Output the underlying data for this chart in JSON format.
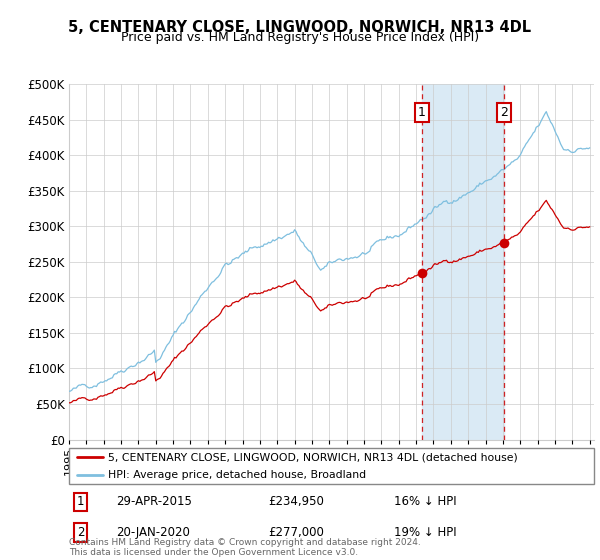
{
  "title": "5, CENTENARY CLOSE, LINGWOOD, NORWICH, NR13 4DL",
  "subtitle": "Price paid vs. HM Land Registry's House Price Index (HPI)",
  "legend_line1": "5, CENTENARY CLOSE, LINGWOOD, NORWICH, NR13 4DL (detached house)",
  "legend_line2": "HPI: Average price, detached house, Broadland",
  "footer": "Contains HM Land Registry data © Crown copyright and database right 2024.\nThis data is licensed under the Open Government Licence v3.0.",
  "annotation1_date": "29-APR-2015",
  "annotation1_price": "£234,950",
  "annotation1_hpi": "16% ↓ HPI",
  "annotation2_date": "20-JAN-2020",
  "annotation2_price": "£277,000",
  "annotation2_hpi": "19% ↓ HPI",
  "hpi_color": "#7fbfdf",
  "price_color": "#cc0000",
  "shading_color": "#daeaf5",
  "ylim_min": 0,
  "ylim_max": 500000,
  "yticks": [
    0,
    50000,
    100000,
    150000,
    200000,
    250000,
    300000,
    350000,
    400000,
    450000,
    500000
  ],
  "ytick_labels": [
    "£0",
    "£50K",
    "£100K",
    "£150K",
    "£200K",
    "£250K",
    "£300K",
    "£350K",
    "£400K",
    "£450K",
    "£500K"
  ],
  "sale1_x": 2015.33,
  "sale1_y": 234950,
  "sale2_x": 2020.05,
  "sale2_y": 277000,
  "xmin": 1995.0,
  "xmax": 2025.25
}
